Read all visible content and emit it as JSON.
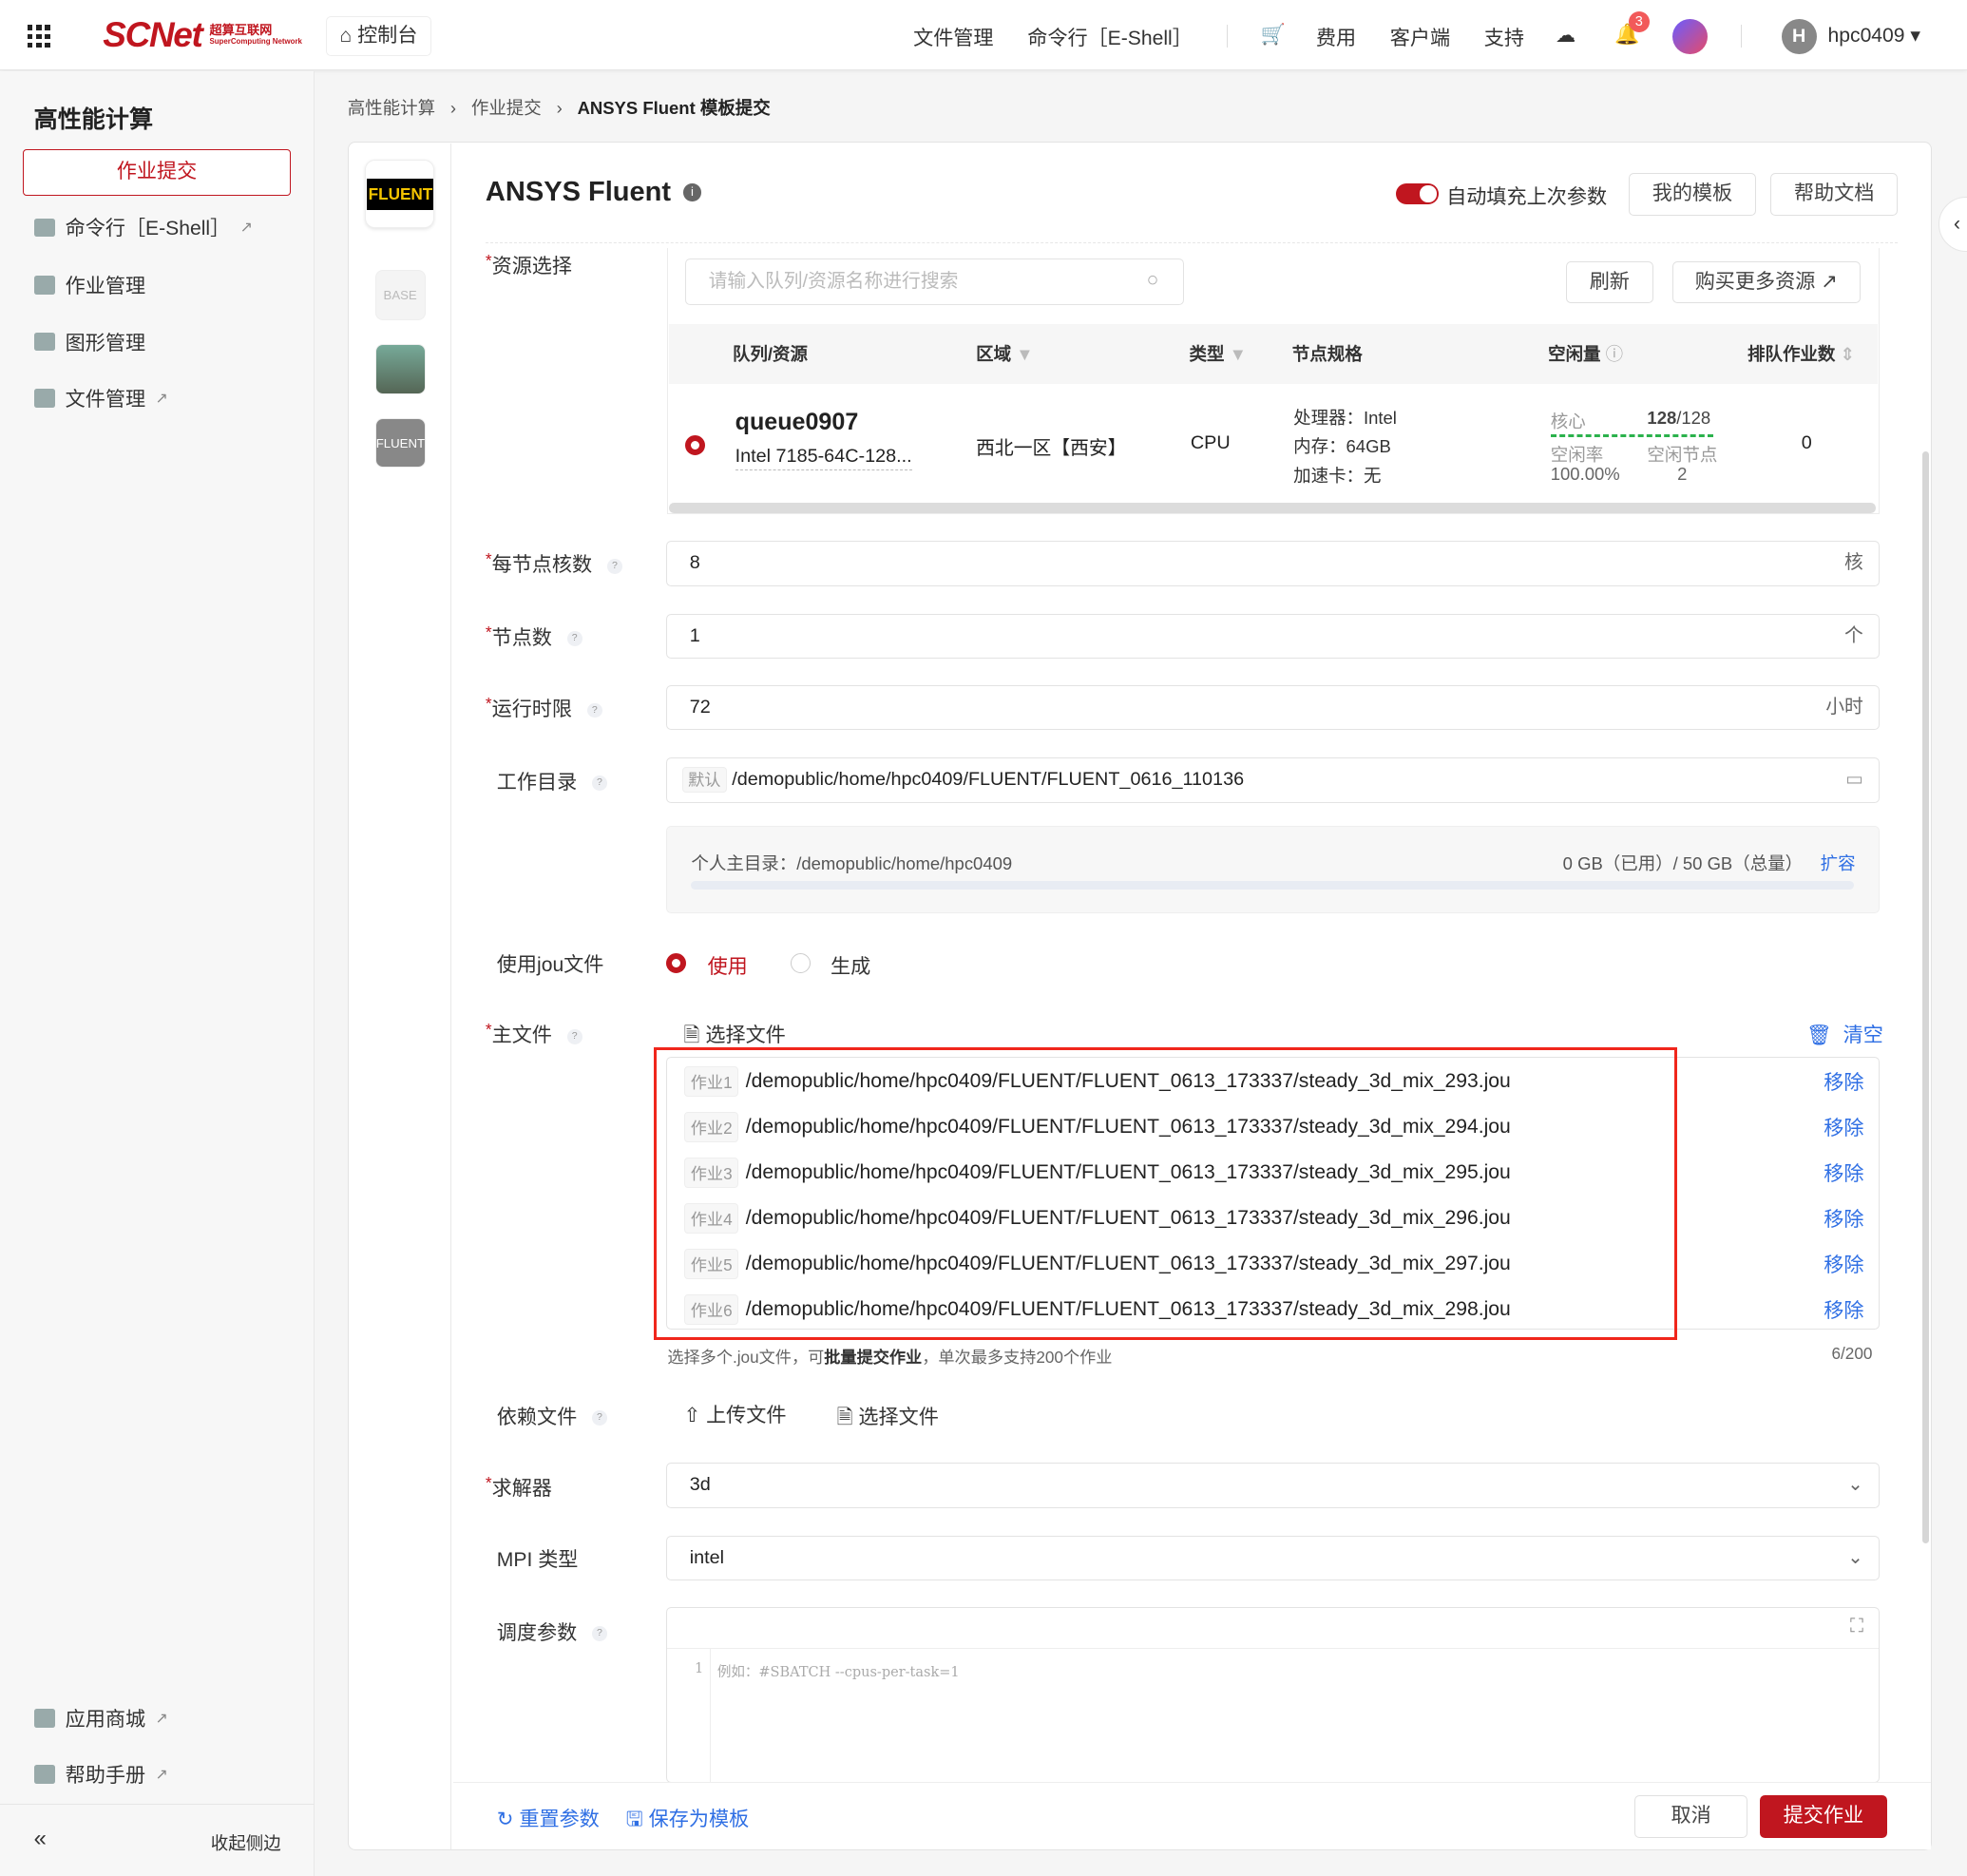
{
  "header": {
    "brand": "SCNet",
    "brand_sub": "超算互联网",
    "brand_sub2": "SuperComputing Network",
    "console": "控制台",
    "nav": [
      "文件管理",
      "命令行［E-Shell］",
      "费用",
      "客户端",
      "支持"
    ],
    "notif_count": "3",
    "username": "hpc0409",
    "avatar_letter": "H"
  },
  "sidebar": {
    "title": "高性能计算",
    "active": "作业提交",
    "items": [
      "命令行［E-Shell］",
      "作业管理",
      "图形管理",
      "文件管理"
    ],
    "bottom": [
      "应用商城",
      "帮助手册"
    ],
    "collapse": "收起侧边"
  },
  "breadcrumb": [
    "高性能计算",
    "作业提交",
    "ANSYS Fluent 模板提交"
  ],
  "app": {
    "logo_text": "FLUENT",
    "title": "ANSYS Fluent",
    "autofill": "自动填充上次参数",
    "autofill_on": true,
    "my_templates": "我的模板",
    "help_docs": "帮助文档",
    "thumbs": [
      "BASE",
      "",
      "FLUENT"
    ]
  },
  "resource": {
    "label": "资源选择",
    "search_placeholder": "请输入队列/资源名称进行搜索",
    "refresh": "刷新",
    "buy_more": "购买更多资源",
    "columns": [
      "队列/资源",
      "区域",
      "类型",
      "节点规格",
      "空闲量",
      "排队作业数"
    ],
    "row": {
      "queue": "queue0907",
      "desc": "Intel 7185-64C-128...",
      "region": "西北一区【西安】",
      "type": "CPU",
      "spec": [
        "处理器：Intel",
        "内存：64GB",
        "加速卡：无"
      ],
      "core_label": "核心",
      "core_free": "128",
      "core_total": "/128",
      "idle_rate_label": "空闲率",
      "idle_rate": "100.00%",
      "idle_nodes_label": "空闲节点",
      "idle_nodes": "2",
      "queued": "0"
    }
  },
  "form": {
    "cores": {
      "label": "每节点核数",
      "value": "8",
      "suffix": "核"
    },
    "nodes": {
      "label": "节点数",
      "value": "1",
      "suffix": "个"
    },
    "runtime": {
      "label": "运行时限",
      "value": "72",
      "suffix": "小时"
    },
    "workdir": {
      "label": "工作目录",
      "tag": "默认",
      "value": "/demopublic/home/hpc0409/FLUENT/FLUENT_0616_110136"
    },
    "storage": {
      "home": "个人主目录：/demopublic/home/hpc0409",
      "usage": "0 GB（已用）/ 50 GB（总量）",
      "expand": "扩容",
      "used_fraction": 0
    },
    "jou": {
      "label": "使用jou文件",
      "options": [
        "使用",
        "生成"
      ],
      "selected": "使用"
    },
    "main_file": {
      "label": "主文件",
      "select": "选择文件",
      "clear": "清空",
      "remove": "移除",
      "files": [
        {
          "tag": "作业1",
          "path": "/demopublic/home/hpc0409/FLUENT/FLUENT_0613_173337/steady_3d_mix_293.jou"
        },
        {
          "tag": "作业2",
          "path": "/demopublic/home/hpc0409/FLUENT/FLUENT_0613_173337/steady_3d_mix_294.jou"
        },
        {
          "tag": "作业3",
          "path": "/demopublic/home/hpc0409/FLUENT/FLUENT_0613_173337/steady_3d_mix_295.jou"
        },
        {
          "tag": "作业4",
          "path": "/demopublic/home/hpc0409/FLUENT/FLUENT_0613_173337/steady_3d_mix_296.jou"
        },
        {
          "tag": "作业5",
          "path": "/demopublic/home/hpc0409/FLUENT/FLUENT_0613_173337/steady_3d_mix_297.jou"
        },
        {
          "tag": "作业6",
          "path": "/demopublic/home/hpc0409/FLUENT/FLUENT_0613_173337/steady_3d_mix_298.jou"
        }
      ],
      "hint_a": "选择多个.jou文件，可",
      "hint_b": "批量提交作业",
      "hint_c": "，单次最多支持200个作业",
      "count": "6/200"
    },
    "deps": {
      "label": "依赖文件",
      "upload": "上传文件",
      "select": "选择文件"
    },
    "solver": {
      "label": "求解器",
      "value": "3d"
    },
    "mpi": {
      "label": "MPI 类型",
      "value": "intel"
    },
    "sched": {
      "label": "调度参数",
      "line_no": "1",
      "placeholder": "例如：#SBATCH --cpus-per-task=1"
    }
  },
  "footer": {
    "reset": "重置参数",
    "save_template": "保存为模板",
    "cancel": "取消",
    "submit": "提交作业"
  }
}
